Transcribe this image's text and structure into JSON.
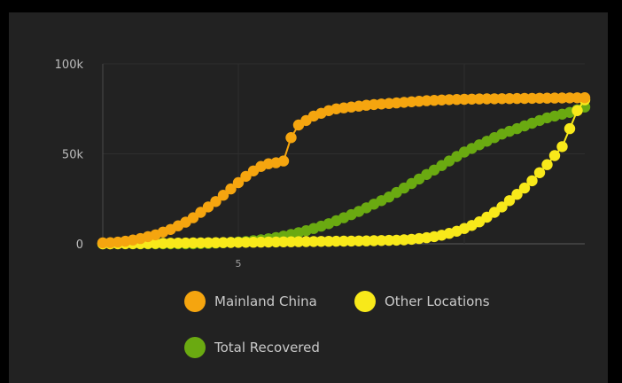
{
  "chart_data": {
    "type": "line",
    "xlabel": "",
    "ylabel": "",
    "ylim": [
      0,
      100000
    ],
    "yticks": [
      {
        "value": 0,
        "label": "0"
      },
      {
        "value": 50000,
        "label": "50k"
      },
      {
        "value": 100000,
        "label": "100k"
      }
    ],
    "x_marker": "5",
    "x_day_marker": 18,
    "x_tick_days": [
      18,
      48
    ],
    "num_days": 65,
    "grid": true,
    "legend_position": "bottom",
    "series": [
      {
        "name": "Mainland China",
        "color": "#f5a50f",
        "values": [
          555,
          653,
          941,
          1438,
          2118,
          2927,
          4000,
          5000,
          6500,
          8000,
          10000,
          12000,
          14500,
          17500,
          20500,
          23500,
          27000,
          30500,
          34000,
          37500,
          40500,
          43000,
          44500,
          45000,
          46000,
          59000,
          66000,
          68500,
          71000,
          72500,
          74000,
          75000,
          75500,
          76000,
          76500,
          77000,
          77400,
          77700,
          78000,
          78300,
          78600,
          78900,
          79200,
          79500,
          79700,
          79900,
          80100,
          80200,
          80300,
          80400,
          80500,
          80550,
          80600,
          80650,
          80700,
          80750,
          80800,
          80850,
          80900,
          80950,
          81000,
          81050,
          81100,
          81150,
          81200
        ]
      },
      {
        "name": "Other Locations",
        "color": "#f8e91a",
        "values": [
          0,
          0,
          50,
          100,
          120,
          150,
          200,
          250,
          300,
          350,
          400,
          450,
          500,
          550,
          600,
          650,
          700,
          750,
          800,
          850,
          900,
          950,
          1000,
          1050,
          1100,
          1150,
          1200,
          1250,
          1300,
          1350,
          1400,
          1450,
          1500,
          1550,
          1600,
          1650,
          1700,
          1800,
          1900,
          2000,
          2200,
          2500,
          2900,
          3400,
          4000,
          4800,
          5800,
          7000,
          8500,
          10200,
          12200,
          14800,
          17500,
          20500,
          24000,
          27500,
          31000,
          35000,
          39500,
          44000,
          49000,
          54000,
          64000,
          74000,
          80000
        ]
      },
      {
        "name": "Total Recovered",
        "color": "#6aaa11",
        "values": [
          0,
          0,
          0,
          0,
          0,
          0,
          0,
          0,
          0,
          0,
          0,
          0,
          0,
          100,
          200,
          400,
          600,
          800,
          1000,
          1300,
          1700,
          2200,
          2800,
          3500,
          4300,
          5200,
          6200,
          7300,
          8500,
          9800,
          11200,
          12800,
          14500,
          16200,
          18000,
          20000,
          22000,
          24000,
          26000,
          28500,
          31000,
          33500,
          36000,
          38500,
          41000,
          43500,
          46000,
          48500,
          51000,
          53000,
          55000,
          57000,
          59000,
          61000,
          62500,
          64000,
          65500,
          67000,
          68500,
          70000,
          71000,
          72000,
          73000,
          74500,
          76000
        ]
      }
    ]
  }
}
